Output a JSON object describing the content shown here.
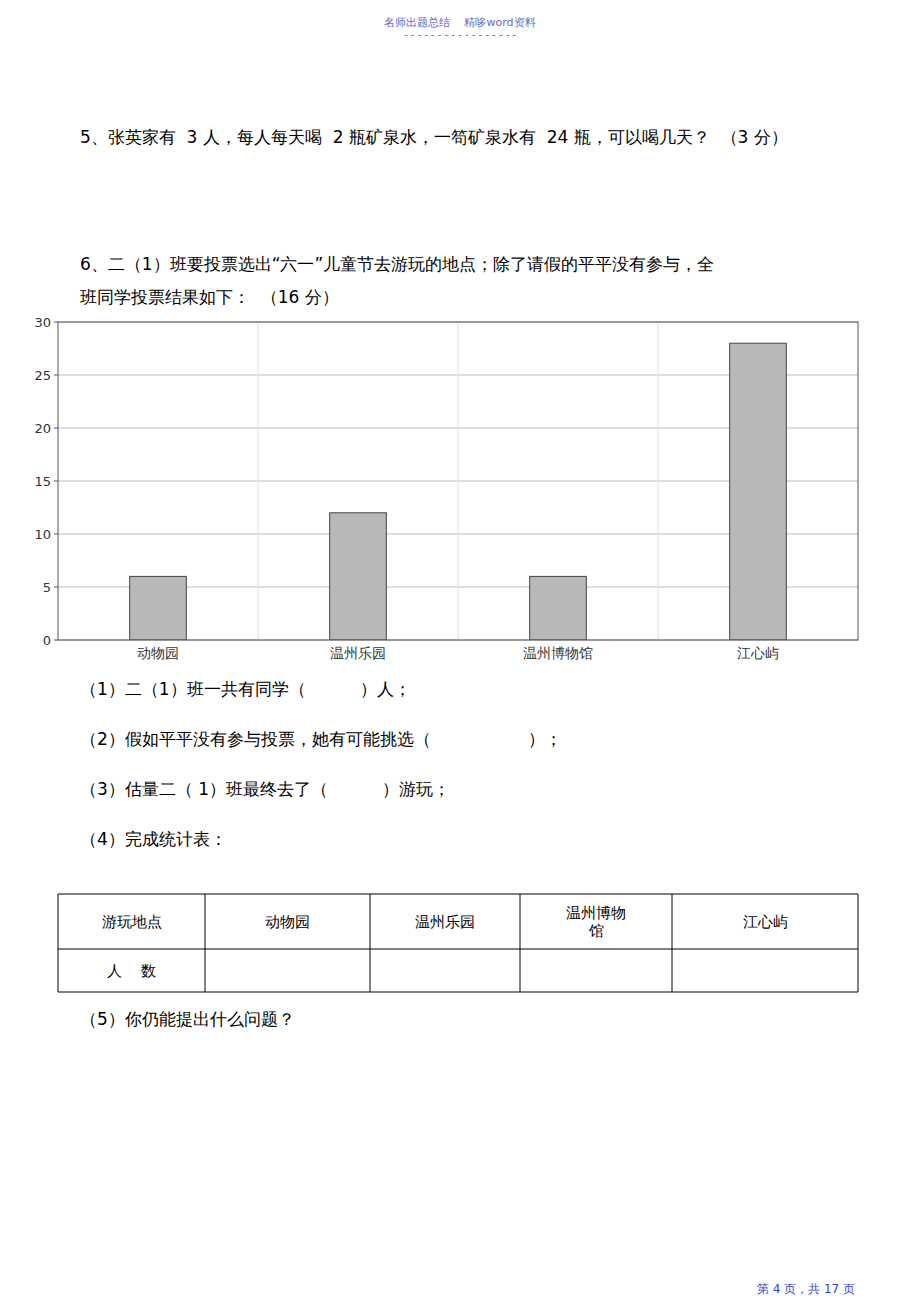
{
  "chart_data": {
    "type": "bar",
    "categories": [
      "动物园",
      "温州乐园",
      "温州博物馆",
      "江心屿"
    ],
    "values": [
      6,
      12,
      6,
      28
    ],
    "color": "#b8b8b8",
    "ylim": [
      0,
      30
    ],
    "yticks": [
      0,
      5,
      10,
      15,
      20,
      25,
      30
    ],
    "grid": true,
    "annotations": [
      "名师出题总结    精哆word资料",
      "- - - - - - - - - - - - - - - - -",
      "5、张英家有  3 人，每人每天喝  2 瓶矿泉水，一笱矿泉水有  24 瓶，可以喝几天？  （3 分）",
      "6、二（1）班要投票选出“六一”儿童节去游玩的地点；除了请假的平平没有参与，全",
      "班同学投票结果如下：  （16 分）",
      "（1）二（1）班一共有同学（          ）人；",
      "（2）假如平平没有参与投票，她有可能挑选（                  ）；",
      "（3）估量二（ 1）班最终去了（          ）游玩；",
      "（4）完成统计表：",
      "游玩地点",
      "动物园",
      "温州乐园",
      "温州博物",
      "馆",
      "江心屿",
      "人    数",
      "（5）你仍能提出什么问题？",
      "第 4 页，共 17 页"
    ]
  }
}
